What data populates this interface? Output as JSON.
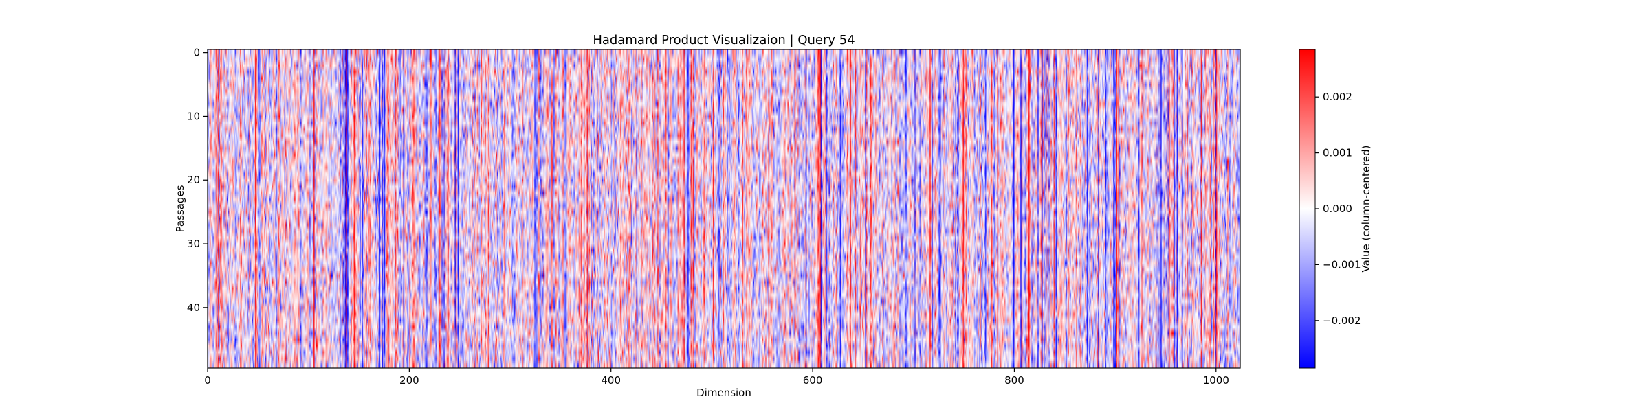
{
  "chart_data": {
    "type": "heatmap",
    "title": "Hadamard Product Visualizaion | Query 54",
    "xlabel": "Dimension",
    "ylabel": "Passages",
    "x_range": [
      0,
      1024
    ],
    "y_range": [
      0,
      50
    ],
    "x_ticks": [
      0,
      200,
      400,
      600,
      800,
      1000
    ],
    "x_tick_labels": [
      "0",
      "200",
      "400",
      "600",
      "800",
      "1000"
    ],
    "y_ticks": [
      0,
      10,
      20,
      30,
      40
    ],
    "y_tick_labels": [
      "0",
      "10",
      "20",
      "30",
      "40"
    ],
    "colormap": "bwr",
    "color_low": "#0000ff",
    "color_mid": "#ffffff",
    "color_high": "#ff0000",
    "value_range": [
      -0.00285,
      0.00285
    ],
    "colorbar": {
      "label": "Value (column-centered)",
      "ticks": [
        0.002,
        0.001,
        0.0,
        -0.001,
        -0.002
      ],
      "tick_labels": [
        "0.002",
        "0.001",
        "0.000",
        "−0.001",
        "−0.002"
      ]
    },
    "grid": false,
    "legend": "none",
    "rows": 50,
    "columns": 1024
  }
}
